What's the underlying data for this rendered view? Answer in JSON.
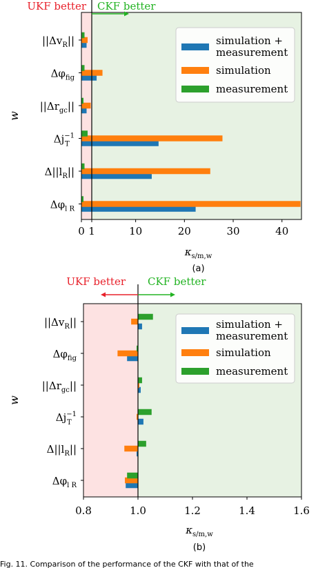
{
  "colors": {
    "sim_meas": "#1f77b4",
    "sim": "#ff7f0e",
    "meas": "#2ca02c",
    "ukf_region": "#fde2e2",
    "ckf_region": "#e7f2e3",
    "ukf_text": "#e8202a",
    "ckf_text": "#22b322"
  },
  "legend_entries": [
    "simulation +",
    "measurement",
    "simulation",
    "measurement"
  ],
  "annotations": {
    "ukf": "UKF better",
    "ckf": "CKF better"
  },
  "caption_text": "Fig. 11.   Comparison of the performance of the CKF with that of the",
  "chart_data": [
    {
      "type": "bar",
      "orientation": "horizontal",
      "panel_label": "(a)",
      "categories": [
        "||Δv_R||",
        "Δφ_fig",
        "||Δr_gc||",
        "Δj_T^-1",
        "Δ||l_R||",
        "Δφ_l_R"
      ],
      "category_display": [
        {
          "main": "||Δv",
          "sub": "R",
          "sup": "",
          "tail": "||"
        },
        {
          "main": "Δφ",
          "sub": "fig",
          "sup": "",
          "tail": ""
        },
        {
          "main": "||Δr",
          "sub": "gc",
          "sup": "",
          "tail": "||"
        },
        {
          "main": "Δj",
          "sub": "T",
          "sup": "−1",
          "tail": ""
        },
        {
          "main": "Δ||l",
          "sub": "R",
          "sup": "",
          "tail": "||"
        },
        {
          "main": "Δφ",
          "sub": "l R",
          "sup": "",
          "tail": ""
        }
      ],
      "series": [
        {
          "name": "simulation + measurement",
          "values": [
            0.5,
            2.0,
            0.5,
            14.7,
            13.3,
            22.3
          ]
        },
        {
          "name": "simulation",
          "values": [
            0.6,
            3.2,
            0.9,
            27.8,
            25.3,
            43.8
          ]
        },
        {
          "name": "measurement",
          "values": [
            0.3,
            0.3,
            0.2,
            0.6,
            0.3,
            0.2
          ]
        }
      ],
      "xlabel": "κ s/m,w",
      "ylabel": "w",
      "xlim": [
        0,
        44
      ],
      "xticks": [
        0,
        1,
        10,
        20,
        30,
        40
      ],
      "xtick_labels": [
        "0",
        "1",
        "10",
        "20",
        "30",
        "40"
      ],
      "reference_line": 1,
      "legend_position": "top-right"
    },
    {
      "type": "bar",
      "orientation": "horizontal",
      "panel_label": "(b)",
      "categories": [
        "||Δv_R||",
        "Δφ_fig",
        "||Δr_gc||",
        "Δj_T^-1",
        "Δ||l_R||",
        "Δφ_l_R"
      ],
      "category_display": [
        {
          "main": "||Δv",
          "sub": "R",
          "sup": "",
          "tail": "||"
        },
        {
          "main": "Δφ",
          "sub": "fig",
          "sup": "",
          "tail": ""
        },
        {
          "main": "||Δr",
          "sub": "gc",
          "sup": "",
          "tail": "||"
        },
        {
          "main": "Δj",
          "sub": "T",
          "sup": "−1",
          "tail": ""
        },
        {
          "main": "Δ||l",
          "sub": "R",
          "sup": "",
          "tail": "||"
        },
        {
          "main": "Δφ",
          "sub": "l R",
          "sup": "",
          "tail": ""
        }
      ],
      "series": [
        {
          "name": "simulation + measurement",
          "values": [
            1.015,
            0.96,
            1.01,
            1.02,
            0.995,
            0.955
          ]
        },
        {
          "name": "simulation",
          "values": [
            0.975,
            0.925,
            1.005,
            0.995,
            0.95,
            0.952
          ]
        },
        {
          "name": "measurement",
          "values": [
            1.055,
            0.995,
            1.015,
            1.05,
            1.03,
            0.96
          ]
        }
      ],
      "xlabel": "κ s/m,w",
      "ylabel": "w",
      "xlim": [
        0.8,
        1.6
      ],
      "xticks": [
        0.8,
        1.0,
        1.2,
        1.4,
        1.6
      ],
      "xtick_labels": [
        "0.8",
        "1.0",
        "1.2",
        "1.4",
        "1.6"
      ],
      "reference_line": 1,
      "legend_position": "top-right"
    }
  ]
}
